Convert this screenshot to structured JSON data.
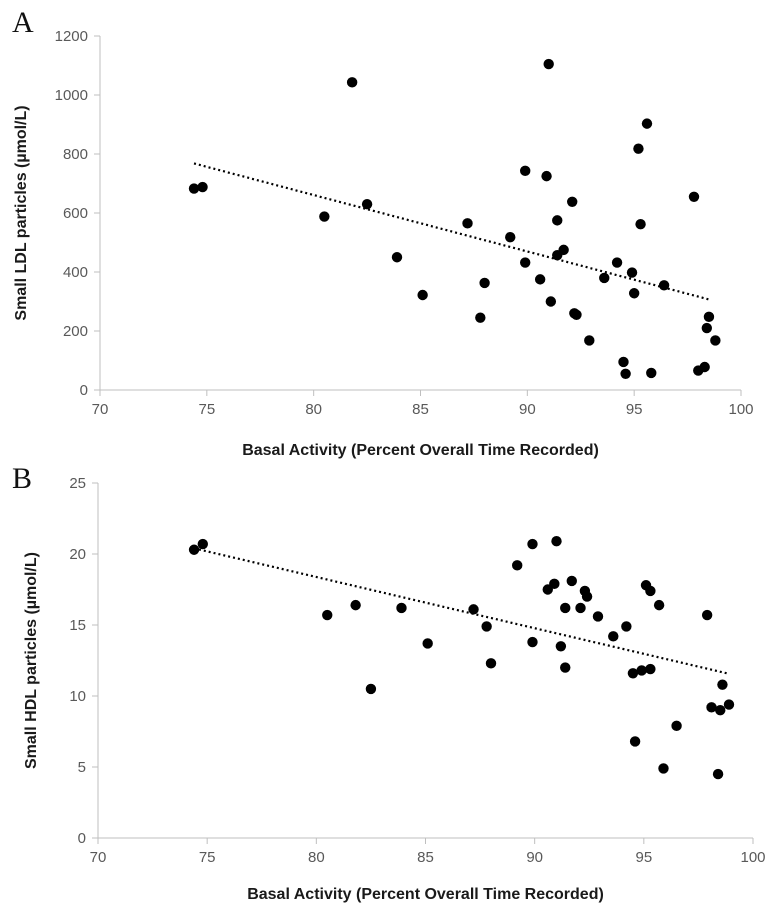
{
  "chart_data": [
    {
      "type": "scatter",
      "panel_label": "A",
      "xlabel": "Basal Activity (Percent Overall Time Recorded)",
      "ylabel": "Small LDL particles (µmol/L)",
      "xlim": [
        70,
        100
      ],
      "ylim": [
        0,
        1200
      ],
      "xticks": [
        70,
        75,
        80,
        85,
        90,
        95,
        100
      ],
      "yticks": [
        0,
        200,
        400,
        600,
        800,
        1000,
        1200
      ],
      "grid": false,
      "trendline": {
        "x": [
          74.4,
          98.5
        ],
        "y": [
          768,
          307
        ]
      },
      "points": [
        [
          74.4,
          683
        ],
        [
          74.8,
          688
        ],
        [
          80.5,
          588
        ],
        [
          81.8,
          1043
        ],
        [
          82.5,
          630
        ],
        [
          83.9,
          450
        ],
        [
          85.1,
          322
        ],
        [
          87.2,
          565
        ],
        [
          87.8,
          245
        ],
        [
          88.0,
          363
        ],
        [
          89.2,
          518
        ],
        [
          89.9,
          743
        ],
        [
          89.9,
          432
        ],
        [
          90.6,
          375
        ],
        [
          90.9,
          725
        ],
        [
          91.0,
          1105
        ],
        [
          91.1,
          300
        ],
        [
          91.4,
          575
        ],
        [
          91.4,
          457
        ],
        [
          91.7,
          475
        ],
        [
          92.1,
          638
        ],
        [
          92.2,
          260
        ],
        [
          92.3,
          255
        ],
        [
          92.9,
          168
        ],
        [
          93.6,
          380
        ],
        [
          94.2,
          432
        ],
        [
          94.5,
          95
        ],
        [
          94.6,
          55
        ],
        [
          94.9,
          398
        ],
        [
          95.0,
          328
        ],
        [
          95.2,
          818
        ],
        [
          95.3,
          562
        ],
        [
          95.6,
          903
        ],
        [
          95.8,
          58
        ],
        [
          96.4,
          355
        ],
        [
          97.8,
          655
        ],
        [
          98.0,
          66
        ],
        [
          98.3,
          78
        ],
        [
          98.4,
          210
        ],
        [
          98.5,
          248
        ],
        [
          98.8,
          168
        ]
      ]
    },
    {
      "type": "scatter",
      "panel_label": "B",
      "xlabel": "Basal Activity (Percent Overall Time Recorded)",
      "ylabel": "Small HDL particles (µmol/L)",
      "xlim": [
        70,
        100
      ],
      "ylim": [
        0,
        25
      ],
      "xticks": [
        70,
        75,
        80,
        85,
        90,
        95,
        100
      ],
      "yticks": [
        0,
        5,
        10,
        15,
        20,
        25
      ],
      "grid": false,
      "trendline": {
        "x": [
          74.4,
          98.8
        ],
        "y": [
          20.4,
          11.6
        ]
      },
      "points": [
        [
          74.4,
          20.3
        ],
        [
          74.8,
          20.7
        ],
        [
          80.5,
          15.7
        ],
        [
          81.8,
          16.4
        ],
        [
          82.5,
          10.5
        ],
        [
          83.9,
          16.2
        ],
        [
          85.1,
          13.7
        ],
        [
          87.2,
          16.1
        ],
        [
          87.8,
          14.9
        ],
        [
          88.0,
          12.3
        ],
        [
          89.2,
          19.2
        ],
        [
          89.9,
          20.7
        ],
        [
          89.9,
          13.8
        ],
        [
          90.6,
          17.5
        ],
        [
          90.9,
          17.9
        ],
        [
          91.0,
          20.9
        ],
        [
          91.2,
          13.5
        ],
        [
          91.4,
          16.2
        ],
        [
          91.4,
          12.0
        ],
        [
          91.7,
          18.1
        ],
        [
          92.1,
          16.2
        ],
        [
          92.3,
          17.4
        ],
        [
          92.4,
          17.0
        ],
        [
          92.9,
          15.6
        ],
        [
          93.6,
          14.2
        ],
        [
          94.2,
          14.9
        ],
        [
          94.5,
          11.6
        ],
        [
          94.6,
          6.8
        ],
        [
          94.9,
          11.8
        ],
        [
          95.1,
          17.8
        ],
        [
          95.3,
          17.4
        ],
        [
          95.3,
          11.9
        ],
        [
          95.7,
          16.4
        ],
        [
          95.9,
          4.9
        ],
        [
          96.5,
          7.9
        ],
        [
          97.9,
          15.7
        ],
        [
          98.1,
          9.2
        ],
        [
          98.4,
          4.5
        ],
        [
          98.5,
          9.0
        ],
        [
          98.6,
          10.8
        ],
        [
          98.9,
          9.4
        ]
      ]
    }
  ]
}
